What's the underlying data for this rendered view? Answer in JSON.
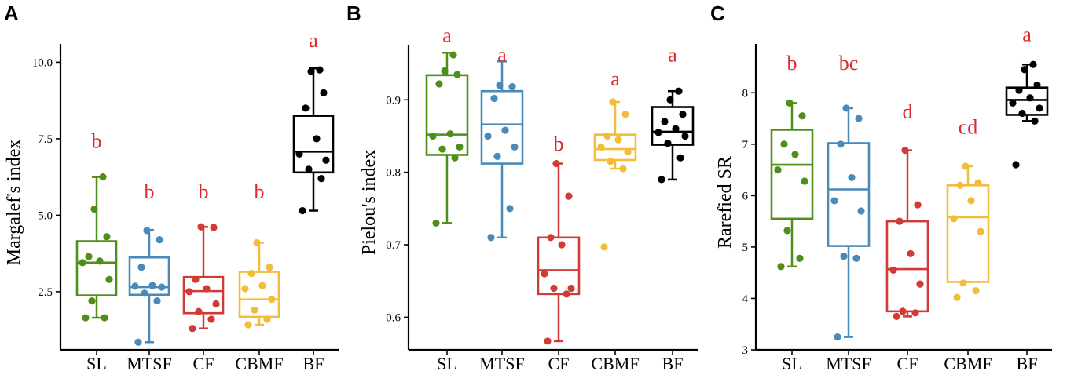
{
  "chart_data": [
    {
      "type": "box",
      "panel": "A",
      "ylabel": "Margalef's index",
      "ylim": [
        0.6,
        10.6
      ],
      "yticks": [
        "2.5",
        "5.0",
        "7.5",
        "10.0"
      ],
      "categories": [
        "SL",
        "MTSF",
        "CF",
        "CBMF",
        "BF"
      ],
      "groups": [
        {
          "name": "SL",
          "color": "#4e8f1a",
          "letter": "b",
          "letter_value": 7.2,
          "box": {
            "min": 1.65,
            "q1": 2.38,
            "median": 3.45,
            "q3": 4.15,
            "max": 6.25
          },
          "points": [
            1.65,
            1.65,
            2.2,
            2.9,
            3.45,
            3.5,
            3.65,
            4.3,
            5.2,
            6.25
          ]
        },
        {
          "name": "MTSF",
          "color": "#4a8ab8",
          "letter": "b",
          "letter_value": 5.55,
          "box": {
            "min": 0.85,
            "q1": 2.4,
            "median": 2.65,
            "q3": 3.62,
            "max": 4.52
          },
          "points": [
            0.85,
            2.2,
            2.45,
            2.65,
            2.68,
            2.7,
            3.3,
            4.2,
            4.5
          ]
        },
        {
          "name": "CF",
          "color": "#d23a36",
          "letter": "b",
          "letter_value": 5.55,
          "box": {
            "min": 1.3,
            "q1": 1.8,
            "median": 2.52,
            "q3": 2.98,
            "max": 4.62
          },
          "points": [
            1.3,
            1.6,
            1.85,
            2.1,
            2.5,
            2.6,
            2.9,
            4.6,
            4.62
          ]
        },
        {
          "name": "CBMF",
          "color": "#f2bd3b",
          "letter": "b",
          "letter_value": 5.55,
          "box": {
            "min": 1.42,
            "q1": 1.68,
            "median": 2.25,
            "q3": 3.15,
            "max": 4.1
          },
          "points": [
            1.42,
            1.6,
            1.9,
            2.25,
            2.6,
            2.7,
            3.1,
            3.3,
            4.1
          ]
        },
        {
          "name": "BF",
          "color": "#000000",
          "letter": "a",
          "letter_value": 10.5,
          "box": {
            "min": 5.15,
            "q1": 6.4,
            "median": 7.08,
            "q3": 8.25,
            "max": 9.8
          },
          "points": [
            5.15,
            6.2,
            6.5,
            6.8,
            7.0,
            7.5,
            8.5,
            9.0,
            9.7,
            9.75
          ]
        }
      ]
    },
    {
      "type": "box",
      "panel": "B",
      "ylabel": "Pielou's index",
      "ylim": [
        0.555,
        0.975
      ],
      "yticks": [
        "0.6",
        "0.7",
        "0.8",
        "0.9"
      ],
      "categories": [
        "SL",
        "MTSF",
        "CF",
        "CBMF",
        "BF"
      ],
      "groups": [
        {
          "name": "SL",
          "color": "#4e8f1a",
          "letter": "a",
          "letter_value": 0.98,
          "box": {
            "min": 0.73,
            "q1": 0.824,
            "median": 0.852,
            "q3": 0.934,
            "max": 0.965
          },
          "points": [
            0.73,
            0.82,
            0.832,
            0.835,
            0.85,
            0.853,
            0.922,
            0.935,
            0.94,
            0.962
          ]
        },
        {
          "name": "MTSF",
          "color": "#4a8ab8",
          "letter": "a",
          "letter_value": 0.953,
          "box": {
            "min": 0.71,
            "q1": 0.812,
            "median": 0.866,
            "q3": 0.912,
            "max": 0.953
          },
          "points": [
            0.71,
            0.75,
            0.822,
            0.835,
            0.85,
            0.858,
            0.902,
            0.918,
            0.92
          ]
        },
        {
          "name": "CF",
          "color": "#d23a36",
          "letter": "b",
          "letter_value": 0.83,
          "box": {
            "min": 0.567,
            "q1": 0.632,
            "median": 0.665,
            "q3": 0.71,
            "max": 0.812
          },
          "points": [
            0.567,
            0.632,
            0.64,
            0.64,
            0.66,
            0.7,
            0.71,
            0.767,
            0.812
          ]
        },
        {
          "name": "CBMF",
          "color": "#f2bd3b",
          "letter": "a",
          "letter_value": 0.92,
          "box": {
            "min": 0.805,
            "q1": 0.817,
            "median": 0.832,
            "q3": 0.852,
            "max": 0.897
          },
          "points": [
            0.697,
            0.805,
            0.815,
            0.828,
            0.835,
            0.845,
            0.85,
            0.88,
            0.897
          ]
        },
        {
          "name": "BF",
          "color": "#000000",
          "letter": "a",
          "letter_value": 0.953,
          "box": {
            "min": 0.79,
            "q1": 0.838,
            "median": 0.856,
            "q3": 0.89,
            "max": 0.912
          },
          "points": [
            0.79,
            0.82,
            0.84,
            0.85,
            0.855,
            0.86,
            0.87,
            0.88,
            0.9,
            0.912
          ]
        }
      ]
    },
    {
      "type": "box",
      "panel": "C",
      "ylabel": "Rarefied SR",
      "ylim": [
        3,
        8.95
      ],
      "yticks": [
        "3",
        "4",
        "5",
        "6",
        "7",
        "8"
      ],
      "categories": [
        "SL",
        "MTSF",
        "CF",
        "CBMF",
        "BF"
      ],
      "groups": [
        {
          "name": "SL",
          "color": "#4e8f1a",
          "letter": "b",
          "letter_value": 8.45,
          "box": {
            "min": 4.62,
            "q1": 5.55,
            "median": 6.6,
            "q3": 7.28,
            "max": 7.8
          },
          "points": [
            4.62,
            4.78,
            5.32,
            6.28,
            6.5,
            6.8,
            7.0,
            7.55,
            7.8
          ]
        },
        {
          "name": "MTSF",
          "color": "#4a8ab8",
          "letter": "bc",
          "letter_value": 8.45,
          "box": {
            "min": 3.25,
            "q1": 5.02,
            "median": 6.12,
            "q3": 7.02,
            "max": 7.7
          },
          "points": [
            3.25,
            4.78,
            4.82,
            5.7,
            5.9,
            6.35,
            7.0,
            7.5,
            7.7
          ]
        },
        {
          "name": "CF",
          "color": "#d23a36",
          "letter": "d",
          "letter_value": 7.5,
          "box": {
            "min": 3.65,
            "q1": 3.75,
            "median": 4.57,
            "q3": 5.5,
            "max": 6.88
          },
          "points": [
            3.65,
            3.72,
            3.75,
            4.28,
            4.55,
            4.87,
            5.5,
            5.82,
            6.88
          ]
        },
        {
          "name": "CBMF",
          "color": "#f2bd3b",
          "letter": "cd",
          "letter_value": 7.2,
          "box": {
            "min": 4.32,
            "q1": 4.32,
            "median": 5.58,
            "q3": 6.2,
            "max": 6.57
          },
          "points": [
            4.02,
            4.15,
            4.3,
            5.3,
            5.55,
            5.9,
            6.2,
            6.25,
            6.57
          ]
        },
        {
          "name": "BF",
          "color": "#000000",
          "letter": "a",
          "letter_value": 9.0,
          "box": {
            "min": 7.45,
            "q1": 7.57,
            "median": 7.86,
            "q3": 8.1,
            "max": 8.55
          },
          "points": [
            6.6,
            7.45,
            7.6,
            7.7,
            7.8,
            7.9,
            8.05,
            8.15,
            8.45,
            8.55
          ]
        }
      ]
    }
  ]
}
